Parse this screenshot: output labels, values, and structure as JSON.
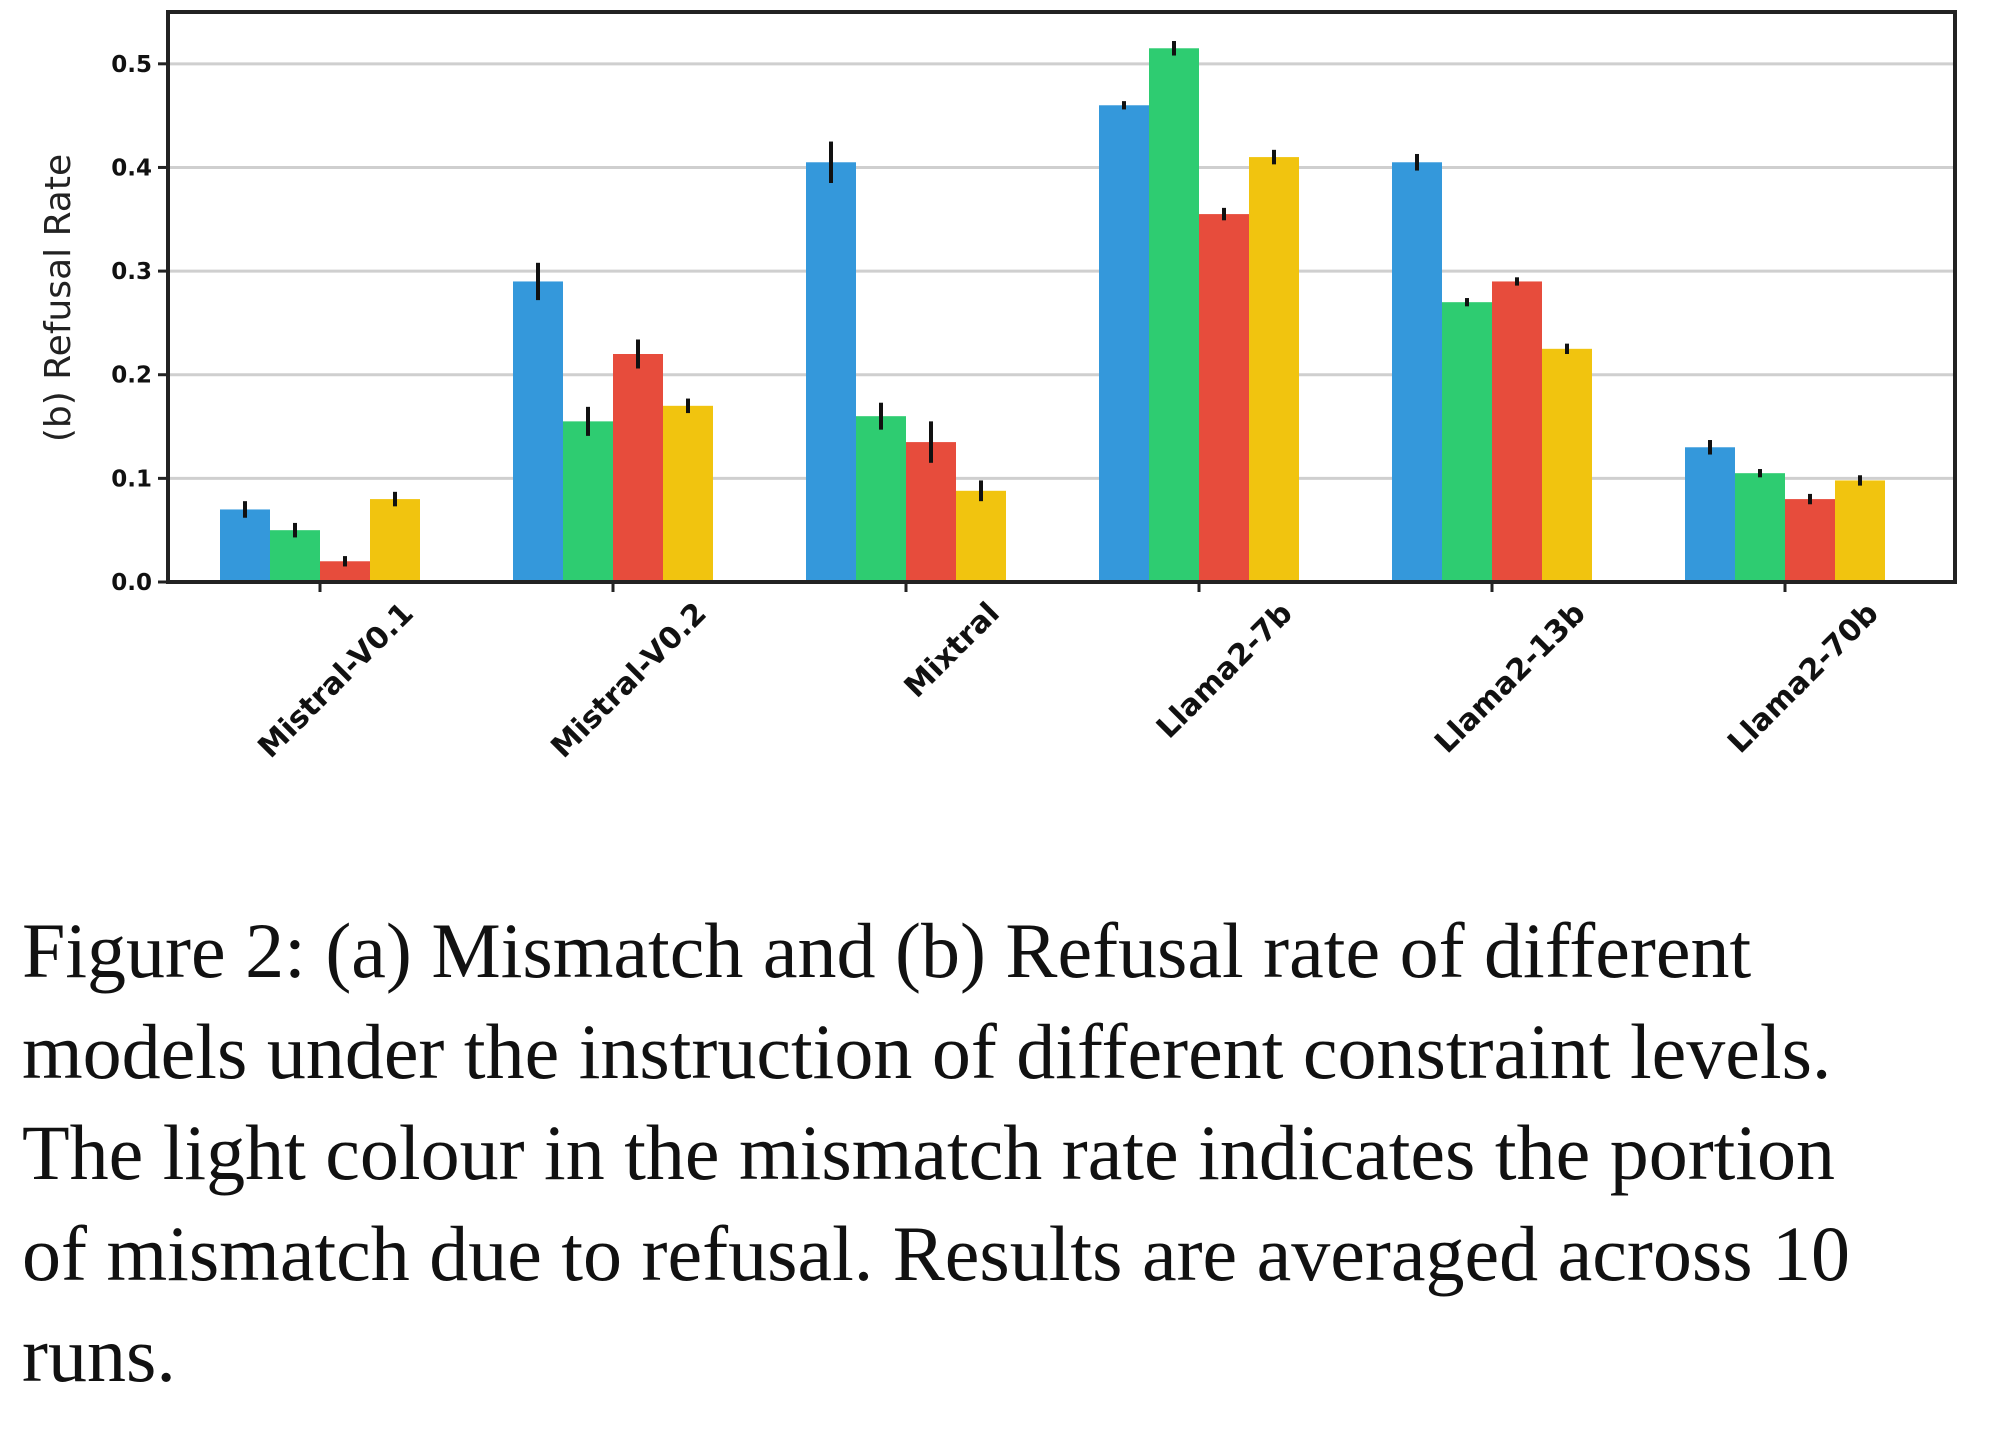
{
  "chart_data": {
    "type": "bar",
    "ylabel": "(b) Refusal Rate",
    "xlabel": "",
    "ylim": [
      0,
      0.55
    ],
    "yticks": [
      "0.0",
      "0.1",
      "0.2",
      "0.3",
      "0.4",
      "0.5"
    ],
    "grid": "horizontal",
    "categories": [
      "Mistral-V0.1",
      "Mistral-V0.2",
      "Mixtral",
      "Llama2-7b",
      "Llama2-13b",
      "Llama2-70b"
    ],
    "series": [
      {
        "color": "#3498db",
        "values": [
          0.07,
          0.29,
          0.405,
          0.46,
          0.405,
          0.13
        ],
        "errors": [
          0.008,
          0.018,
          0.02,
          0.004,
          0.008,
          0.007
        ]
      },
      {
        "color": "#2ecc71",
        "values": [
          0.05,
          0.155,
          0.16,
          0.515,
          0.27,
          0.105
        ],
        "errors": [
          0.007,
          0.014,
          0.013,
          0.007,
          0.004,
          0.004
        ]
      },
      {
        "color": "#e74c3c",
        "values": [
          0.02,
          0.22,
          0.135,
          0.355,
          0.29,
          0.08
        ],
        "errors": [
          0.005,
          0.014,
          0.02,
          0.006,
          0.004,
          0.005
        ]
      },
      {
        "color": "#f1c40f",
        "values": [
          0.08,
          0.17,
          0.088,
          0.41,
          0.225,
          0.098
        ],
        "errors": [
          0.007,
          0.007,
          0.01,
          0.007,
          0.005,
          0.005
        ]
      }
    ]
  },
  "caption": "Figure 2: (a) Mismatch and (b) Refusal rate of different models under the instruction of different constraint levels. The light colour in the mismatch rate indicates the portion of mismatch due to refusal. Results are averaged across 10 runs."
}
